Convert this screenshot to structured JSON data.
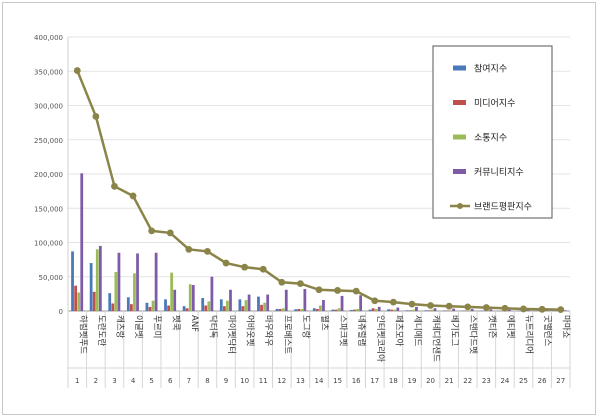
{
  "chart_data": {
    "type": "bar",
    "title": "",
    "xlabel": "",
    "ylabel": "",
    "ylim": [
      0,
      400000
    ],
    "y_ticks": [
      "0",
      "50,000",
      "100,000",
      "150,000",
      "200,000",
      "250,000",
      "300,000",
      "350,000",
      "400,000"
    ],
    "grid": true,
    "legend_position": "right",
    "ranks": [
      "1",
      "2",
      "3",
      "4",
      "5",
      "6",
      "7",
      "8",
      "9",
      "10",
      "11",
      "12",
      "13",
      "14",
      "15",
      "16",
      "17",
      "18",
      "19",
      "20",
      "21",
      "22",
      "23",
      "24",
      "25",
      "26",
      "27"
    ],
    "categories": [
      "하림펫푸드",
      "도란도란",
      "캐츠랑",
      "이글벳",
      "푸르미",
      "펫쿡",
      "ANF",
      "닥터독",
      "마이펫닥터",
      "어바웃펫",
      "바우와우",
      "프로베스트",
      "도그랑",
      "웰츠",
      "스파크펫",
      "네츄럴랩",
      "인터펫코리아",
      "페츠모아",
      "세니메드",
      "캐네디언샌드",
      "베기도그",
      "스탠다드펫",
      "캣티즌",
      "에티펫",
      "뉴트리디어",
      "굿밸런스",
      "마마쇼"
    ],
    "series": [
      {
        "name": "참여지수",
        "color": "#4a78b8",
        "type": "bar",
        "values": [
          87000,
          70000,
          26000,
          20000,
          12000,
          17000,
          7000,
          19000,
          17000,
          17000,
          21000,
          3000,
          2500,
          4000,
          2000,
          1500,
          2000,
          2500,
          1000,
          1000,
          800,
          500,
          600,
          500,
          400,
          300,
          200
        ]
      },
      {
        "name": "미디어지수",
        "color": "#c0504d",
        "type": "bar",
        "values": [
          37000,
          28000,
          11000,
          10000,
          6000,
          8000,
          4000,
          8000,
          7000,
          7000,
          9000,
          3000,
          3000,
          3000,
          2000,
          2000,
          4000,
          2000,
          1000,
          1000,
          800,
          500,
          500,
          500,
          400,
          300,
          200
        ]
      },
      {
        "name": "소통지수",
        "color": "#9bbb59",
        "type": "bar",
        "values": [
          27000,
          90000,
          57000,
          55000,
          15000,
          56000,
          39000,
          14000,
          15000,
          16000,
          12000,
          4000,
          3000,
          8000,
          4000,
          3000,
          3000,
          2000,
          2000,
          2000,
          1000,
          1000,
          1000,
          500,
          500,
          400,
          300
        ]
      },
      {
        "name": "커뮤니티지수",
        "color": "#7d5ba6",
        "type": "bar",
        "values": [
          201000,
          95000,
          85000,
          84000,
          85000,
          31000,
          38000,
          50000,
          31000,
          24000,
          24000,
          31000,
          32000,
          16000,
          22000,
          23000,
          6000,
          5000,
          6000,
          4000,
          3500,
          3000,
          2500,
          2000,
          1500,
          1200,
          1000
        ]
      },
      {
        "name": "브랜드평판지수",
        "color": "#8a8449",
        "type": "line",
        "values": [
          351000,
          284000,
          182000,
          168000,
          117000,
          114000,
          90000,
          87000,
          70000,
          64000,
          61000,
          42000,
          40000,
          31000,
          30000,
          29000,
          15000,
          13000,
          10000,
          8000,
          7000,
          6000,
          5000,
          4000,
          3000,
          2500,
          2000
        ]
      }
    ]
  }
}
